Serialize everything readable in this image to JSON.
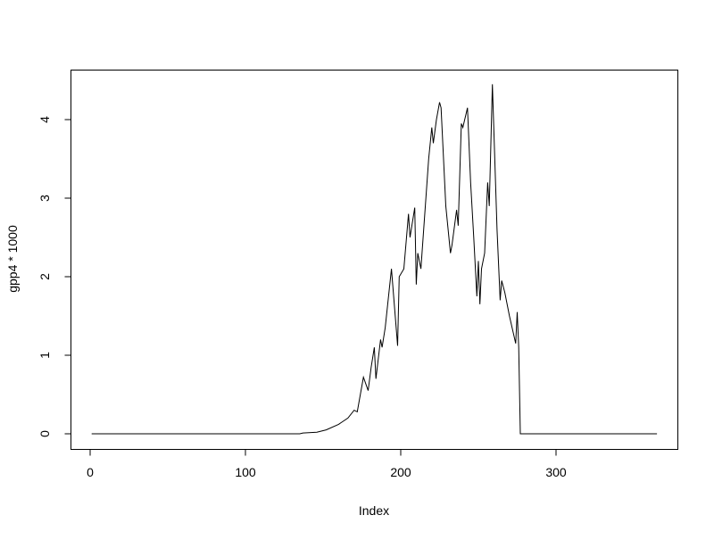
{
  "chart_data": {
    "type": "line",
    "title": "",
    "xlabel": "Index",
    "ylabel": "gpp4 * 1000",
    "xlim": [
      1,
      365
    ],
    "ylim": [
      0,
      4.45
    ],
    "xticks": [
      0,
      100,
      200,
      300
    ],
    "yticks": [
      0,
      1,
      2,
      3,
      4
    ],
    "grid": false,
    "line_color": "#000000",
    "series": [
      {
        "x": [
          1,
          135,
          137,
          146,
          152,
          160,
          166,
          170,
          172,
          176,
          179,
          181,
          183,
          184,
          187,
          188,
          190,
          194,
          198,
          199,
          202,
          205,
          206,
          209,
          210,
          211,
          213,
          218,
          220,
          221,
          223,
          225,
          226,
          229,
          232,
          233,
          236,
          237,
          239,
          240,
          243,
          245,
          247,
          249,
          250,
          251,
          252,
          254,
          256,
          257,
          259,
          262,
          264,
          265,
          267,
          270,
          274,
          275,
          276,
          277,
          365
        ],
        "y": [
          0,
          0,
          0.01,
          0.02,
          0.05,
          0.12,
          0.2,
          0.3,
          0.28,
          0.72,
          0.55,
          0.85,
          1.1,
          0.7,
          1.2,
          1.1,
          1.35,
          2.1,
          1.12,
          2.0,
          2.1,
          2.8,
          2.5,
          2.88,
          1.9,
          2.3,
          2.1,
          3.5,
          3.9,
          3.7,
          4.0,
          4.22,
          4.15,
          2.9,
          2.3,
          2.4,
          2.85,
          2.65,
          3.95,
          3.9,
          4.15,
          3.2,
          2.5,
          1.75,
          2.2,
          1.65,
          2.1,
          2.3,
          3.2,
          2.9,
          4.45,
          2.6,
          1.7,
          1.95,
          1.8,
          1.5,
          1.15,
          1.55,
          1.1,
          0,
          0
        ]
      }
    ]
  }
}
